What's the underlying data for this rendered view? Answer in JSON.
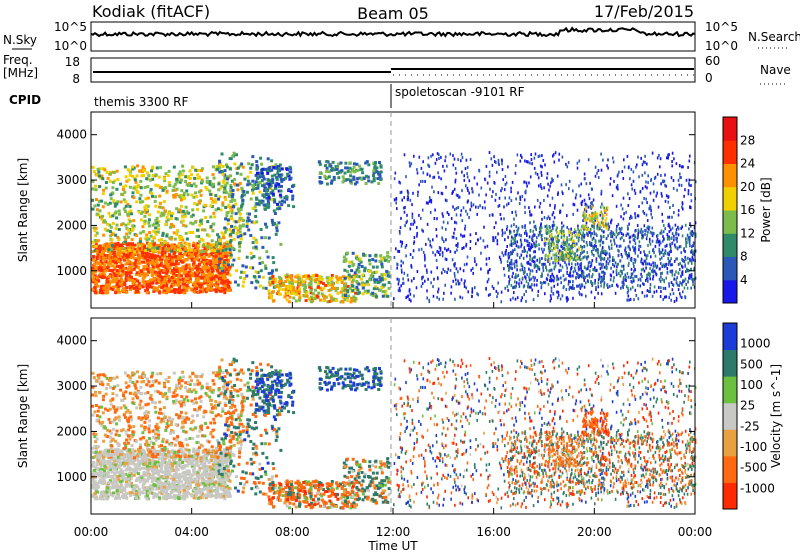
{
  "header": {
    "title_left": "Kodiak (fitACF)",
    "title_center": "Beam 05",
    "title_right": "17/Feb/2015"
  },
  "panels": {
    "nsky_label": "N.Sky",
    "nsearch_label": "N.Search",
    "nsky_ticks": [
      "10^5",
      "10^0"
    ],
    "nsearch_ticks": [
      "10^5",
      "10^0"
    ],
    "freq_label_1": "Freq.",
    "freq_label_2": "[MHz]",
    "freq_ticks": [
      "18",
      "8"
    ],
    "nave_label": "Nave",
    "nave_ticks": [
      "60",
      "0"
    ],
    "cpid_label": "CPID",
    "cpid_1": "themis 3300 RF",
    "cpid_2": "spoletoscan -9101 RF"
  },
  "chart_data": [
    {
      "type": "heatmap",
      "name": "Power",
      "ylabel": "Slant Range [km]",
      "y_ticks": [
        "1000",
        "2000",
        "3000",
        "4000"
      ],
      "colorbar_label": "Power [dB]",
      "colorbar_ticks": [
        "28",
        "24",
        "20",
        "16",
        "12",
        "8",
        "4"
      ],
      "colors": [
        "#1818e8",
        "#2a58b8",
        "#2f8a6a",
        "#7cbc4c",
        "#f0d000",
        "#ff9000",
        "#ff3000",
        "#e81010"
      ]
    },
    {
      "type": "heatmap",
      "name": "Velocity",
      "ylabel": "Slant Range [km]",
      "y_ticks": [
        "1000",
        "2000",
        "3000",
        "4000"
      ],
      "colorbar_label": "Velocity [m s^-1]",
      "colorbar_ticks": [
        "1000",
        "500",
        "100",
        "25",
        "-25",
        "-100",
        "-500",
        "-1000"
      ],
      "colors": [
        "#1c3cd8",
        "#2e7a6a",
        "#6cc040",
        "#c8c8c4",
        "#e8a040",
        "#ff6a10",
        "#ff2a00"
      ],
      "x_ticks": [
        "00:00",
        "04:00",
        "08:00",
        "12:00",
        "16:00",
        "20:00",
        "00:00"
      ],
      "xlabel": "Time UT"
    }
  ]
}
